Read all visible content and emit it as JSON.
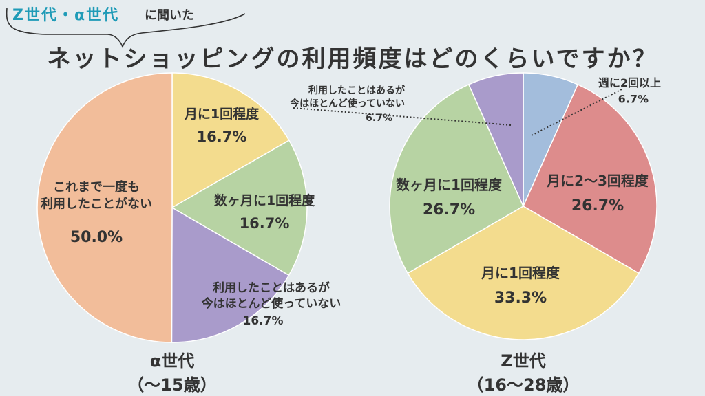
{
  "header": {
    "tag_generations": "Z世代・α世代",
    "tag_suffix": "に聞いた",
    "title": "ネットショッピングの利用頻度はどのくらいですか？"
  },
  "chart_data": [
    {
      "type": "pie",
      "caption": "α世代",
      "sub_caption": "（～15歳）",
      "slices": [
        {
          "label": "月に1回程度",
          "value": 16.7,
          "value_text": "16.7%",
          "color": "#f3dc8e"
        },
        {
          "label": "数ヶ月に1回程度",
          "value": 16.7,
          "value_text": "16.7%",
          "color": "#b7d3a3"
        },
        {
          "label": "利用したことはあるが\n今はほとんど使っていない",
          "value": 16.7,
          "value_text": "16.7%",
          "color": "#a99bcb"
        },
        {
          "label": "これまで一度も\n利用したことがない",
          "value": 50.0,
          "value_text": "50.0%",
          "color": "#f2bd9a"
        }
      ]
    },
    {
      "type": "pie",
      "caption": "Z世代",
      "sub_caption": "（16～28歳）",
      "slices": [
        {
          "label": "週に2回以上",
          "value": 6.7,
          "value_text": "6.7%",
          "color": "#a3bddc"
        },
        {
          "label": "月に2～3回程度",
          "value": 26.7,
          "value_text": "26.7%",
          "color": "#dd8c8c"
        },
        {
          "label": "月に1回程度",
          "value": 33.3,
          "value_text": "33.3%",
          "color": "#f3dc8e"
        },
        {
          "label": "数ヶ月に1回程度",
          "value": 26.7,
          "value_text": "26.7%",
          "color": "#b7d3a3"
        },
        {
          "label": "利用したことはあるが\n今はほとんど使っていない",
          "value": 6.7,
          "value_text": "6.7%",
          "color": "#a99bcb"
        }
      ]
    }
  ]
}
